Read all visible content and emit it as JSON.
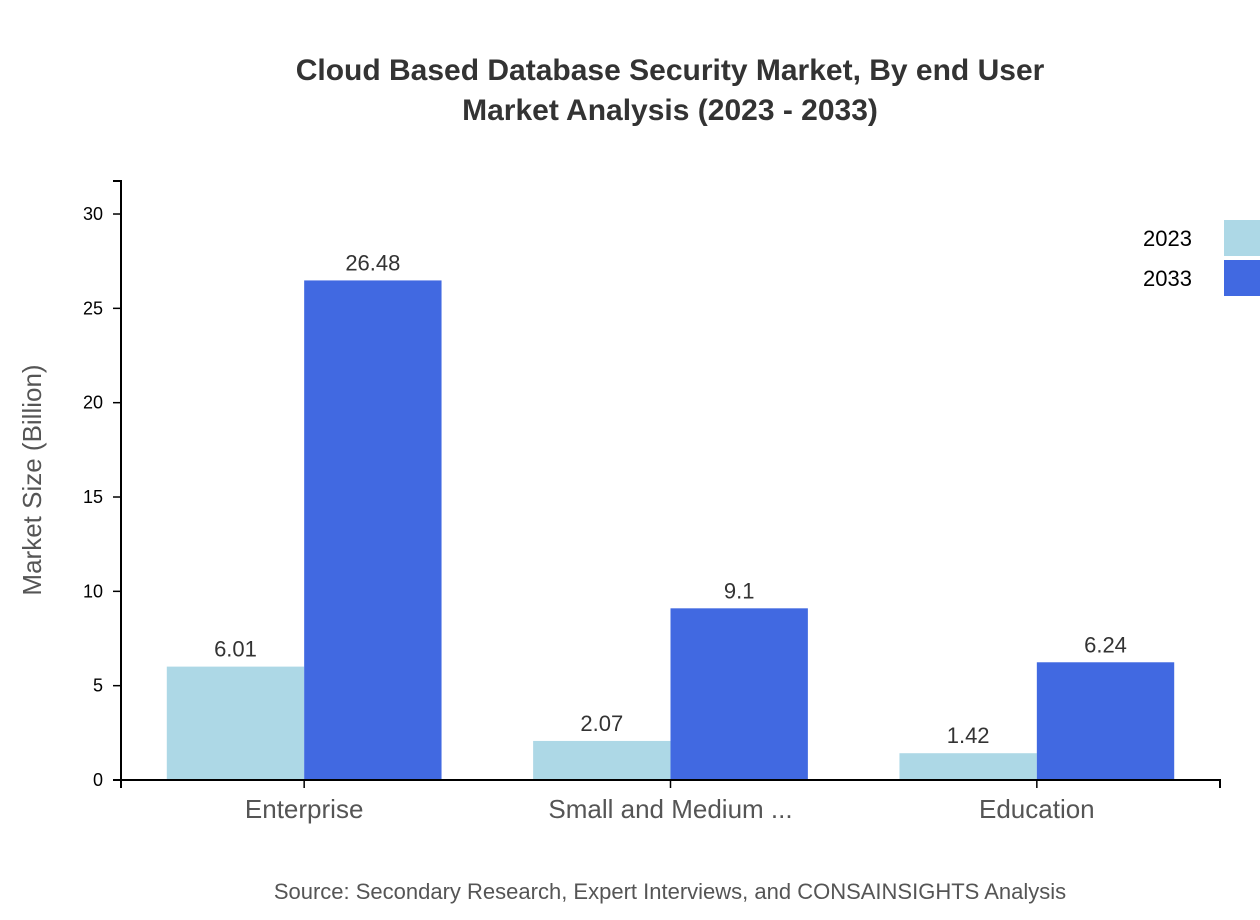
{
  "chart_data": {
    "type": "bar",
    "title_lines": [
      "Cloud Based Database Security Market, By end User",
      "Market Analysis (2023 - 2033)"
    ],
    "xlabel": "",
    "ylabel": "Market Size (Billion)",
    "categories": [
      "Enterprise",
      "Small and Medium ...",
      "Education"
    ],
    "series": [
      {
        "name": "2023",
        "color": "#add8e6",
        "values": [
          6.01,
          2.07,
          1.42
        ]
      },
      {
        "name": "2033",
        "color": "#4169e1",
        "values": [
          26.48,
          9.1,
          6.24
        ]
      }
    ],
    "yticks": [
      0,
      5,
      10,
      15,
      20,
      25,
      30
    ],
    "ylim": [
      0,
      31.75
    ],
    "grid": false,
    "legend_position": "top-right",
    "source": "Source: Secondary Research, Expert Interviews, and CONSAINSIGHTS Analysis"
  }
}
